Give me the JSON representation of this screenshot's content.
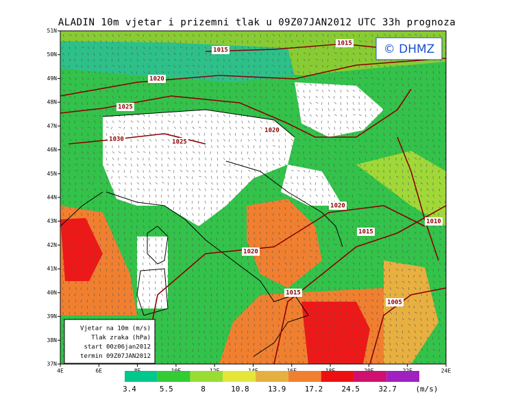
{
  "header": {
    "title": "ALADIN 10m vjetar i prizemni tlak u 09Z07JAN2012 UTC 33h prognoza",
    "copyright": "© DHMZ"
  },
  "map": {
    "lat_ticks": [
      "37N",
      "38N",
      "39N",
      "40N",
      "41N",
      "42N",
      "43N",
      "44N",
      "45N",
      "46N",
      "47N",
      "48N",
      "49N",
      "50N",
      "51N"
    ],
    "lon_ticks": [
      "4E",
      "6E",
      "8E",
      "10E",
      "12E",
      "14E",
      "16E",
      "18E",
      "20E",
      "22E",
      "24E"
    ],
    "isobar_labels": [
      "1015",
      "1015",
      "1020",
      "1025",
      "1030",
      "1025",
      "1020",
      "1020",
      "1015",
      "1010",
      "1020",
      "1015",
      "1005"
    ],
    "info_box": [
      "Vjetar na 10m (m/s)",
      "Tlak zraka (hPa)",
      "start 00z06jan2012",
      "termin 09Z07JAN2012"
    ]
  },
  "colorbar": {
    "labels": [
      "3.4",
      "5.5",
      "8",
      "10.8",
      "13.9",
      "17.2",
      "24.5",
      "32.7"
    ],
    "unit": "(m/s)",
    "colors": [
      "#00c88c",
      "#33cc33",
      "#99dd33",
      "#e6e639",
      "#e6b040",
      "#f08030",
      "#ee1010",
      "#d01070",
      "#a020c0"
    ]
  }
}
